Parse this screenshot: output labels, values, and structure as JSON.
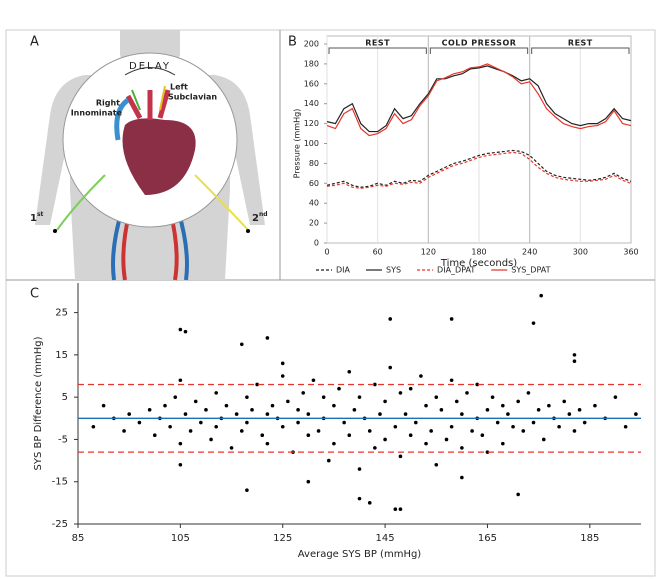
{
  "illustration": {
    "panel_label": "A",
    "delay": "DELAY",
    "left_label": [
      "Left",
      "Subclavian"
    ],
    "right_label": [
      "Right",
      "Innominate"
    ],
    "first_site": {
      "main": "1",
      "sup": "st"
    },
    "second_site": {
      "main": "2",
      "sup": "nd"
    }
  },
  "chart_data": [
    {
      "type": "line",
      "panel_label": "B",
      "x_label": "Time (seconds)",
      "y_label": "Pressure (mmHg)",
      "x": [
        0,
        10,
        20,
        30,
        40,
        50,
        60,
        70,
        80,
        90,
        100,
        110,
        120,
        130,
        140,
        150,
        160,
        170,
        180,
        190,
        200,
        210,
        220,
        230,
        240,
        250,
        260,
        270,
        280,
        290,
        300,
        310,
        320,
        330,
        340,
        350,
        360
      ],
      "series": [
        {
          "name": "DIA",
          "color": "#222222",
          "dash": true,
          "values": [
            58,
            60,
            62,
            58,
            56,
            57,
            60,
            58,
            62,
            60,
            63,
            62,
            68,
            72,
            76,
            80,
            82,
            85,
            88,
            90,
            91,
            92,
            93,
            92,
            88,
            80,
            72,
            68,
            66,
            65,
            64,
            63,
            64,
            66,
            70,
            65,
            62
          ]
        },
        {
          "name": "SYS",
          "color": "#222222",
          "dash": false,
          "values": [
            122,
            120,
            135,
            140,
            120,
            112,
            112,
            118,
            135,
            125,
            128,
            140,
            150,
            165,
            165,
            168,
            170,
            175,
            176,
            178,
            175,
            172,
            168,
            163,
            165,
            158,
            140,
            130,
            125,
            120,
            118,
            120,
            120,
            125,
            135,
            125,
            123
          ]
        },
        {
          "name": "DIA_DPAT",
          "color": "#e8352b",
          "dash": true,
          "values": [
            57,
            58,
            60,
            56,
            55,
            56,
            58,
            57,
            60,
            59,
            61,
            60,
            66,
            70,
            74,
            78,
            80,
            83,
            86,
            88,
            89,
            90,
            91,
            90,
            84,
            76,
            70,
            66,
            64,
            63,
            62,
            62,
            63,
            64,
            68,
            63,
            60
          ]
        },
        {
          "name": "SYS_DPAT",
          "color": "#e8352b",
          "dash": false,
          "values": [
            118,
            115,
            130,
            135,
            115,
            108,
            110,
            115,
            130,
            120,
            124,
            138,
            148,
            163,
            166,
            170,
            172,
            176,
            177,
            180,
            176,
            172,
            167,
            160,
            162,
            150,
            135,
            127,
            120,
            117,
            115,
            117,
            118,
            122,
            133,
            120,
            118
          ]
        }
      ],
      "phases": [
        {
          "label": "REST",
          "range": [
            0,
            120
          ]
        },
        {
          "label": "COLD PRESSOR",
          "range": [
            120,
            240
          ]
        },
        {
          "label": "REST",
          "range": [
            240,
            360
          ]
        }
      ],
      "xlim": [
        0,
        360
      ],
      "xticks": [
        0,
        60,
        120,
        180,
        240,
        300,
        360
      ],
      "ylim": [
        0,
        200
      ],
      "yticks": [
        0,
        20,
        40,
        60,
        80,
        100,
        120,
        140,
        160,
        180,
        200
      ],
      "grid": true,
      "legend": "bottom"
    },
    {
      "type": "scatter",
      "panel_label": "C",
      "x_label": "Average SYS BP (mmHg)",
      "y_label": "SYS BP Difference (mmHg)",
      "color": "#000000",
      "x": [
        88,
        90,
        92,
        94,
        95,
        97,
        99,
        100,
        101,
        102,
        103,
        104,
        105,
        105,
        106,
        107,
        108,
        109,
        110,
        111,
        112,
        112,
        113,
        114,
        115,
        116,
        117,
        118,
        118,
        119,
        120,
        121,
        122,
        122,
        123,
        124,
        125,
        125,
        126,
        127,
        128,
        128,
        129,
        130,
        130,
        131,
        132,
        133,
        133,
        134,
        135,
        135,
        136,
        137,
        138,
        138,
        139,
        140,
        140,
        141,
        142,
        143,
        143,
        144,
        145,
        145,
        146,
        147,
        148,
        148,
        149,
        150,
        150,
        151,
        152,
        153,
        153,
        154,
        155,
        155,
        156,
        157,
        158,
        158,
        159,
        160,
        160,
        161,
        162,
        163,
        163,
        164,
        165,
        165,
        166,
        167,
        168,
        168,
        169,
        170,
        171,
        172,
        173,
        174,
        175,
        176,
        177,
        178,
        179,
        180,
        181,
        182,
        183,
        184,
        186,
        188,
        190,
        192,
        194,
        105,
        106,
        122,
        117,
        146,
        158,
        174,
        175.5,
        182,
        182,
        147,
        148,
        140,
        142,
        118,
        171,
        105,
        130,
        160,
        125
      ],
      "values": [
        -2,
        3,
        0,
        -3,
        1,
        -1,
        2,
        -4,
        0,
        3,
        -2,
        5,
        -6,
        9,
        1,
        -3,
        4,
        -1,
        2,
        -5,
        6,
        -2,
        0,
        3,
        -7,
        1,
        -3,
        5,
        -1,
        2,
        8,
        -4,
        1,
        -6,
        3,
        0,
        -2,
        10,
        4,
        -8,
        2,
        -1,
        6,
        -4,
        1,
        9,
        -3,
        0,
        5,
        -10,
        3,
        -6,
        7,
        -1,
        11,
        -4,
        2,
        -12,
        5,
        0,
        -3,
        8,
        -7,
        1,
        4,
        -5,
        12,
        -2,
        6,
        -9,
        1,
        -4,
        7,
        -1,
        10,
        -6,
        3,
        -3,
        5,
        -11,
        2,
        -5,
        9,
        -2,
        4,
        -7,
        1,
        6,
        -3,
        0,
        8,
        -4,
        2,
        -8,
        5,
        -1,
        3,
        -6,
        1,
        -2,
        4,
        -3,
        6,
        -1,
        2,
        -5,
        3,
        0,
        -2,
        4,
        1,
        -3,
        2,
        -1,
        3,
        0,
        5,
        -2,
        1,
        21,
        20.5,
        19,
        17.5,
        23.5,
        23.5,
        22.5,
        29,
        15,
        13.5,
        -21.5,
        -21.5,
        -19,
        -20,
        -17,
        -18,
        -11,
        -15,
        -14,
        13
      ],
      "hlines": [
        {
          "value": 0,
          "color": "#1f6fb4",
          "dash": false
        },
        {
          "value": 8,
          "color": "#e8352b",
          "dash": true
        },
        {
          "value": -8,
          "color": "#e8352b",
          "dash": true
        }
      ],
      "xlim": [
        85,
        195
      ],
      "xticks": [
        85,
        105,
        125,
        145,
        165,
        185
      ],
      "ylim": [
        -25,
        32
      ],
      "yticks": [
        -25,
        -15,
        -5,
        5,
        15,
        25
      ]
    }
  ]
}
